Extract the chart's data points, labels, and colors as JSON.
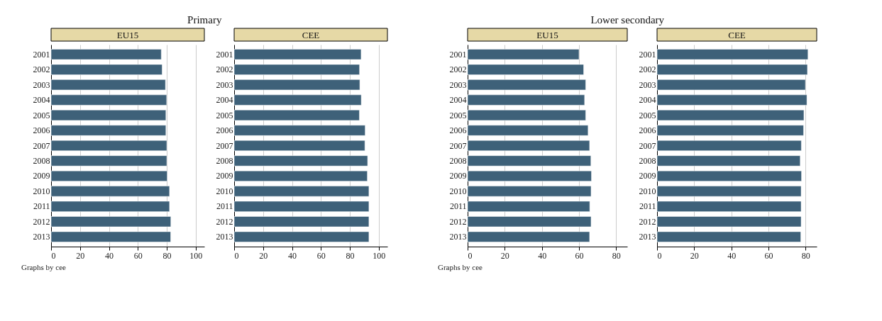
{
  "chart_data": [
    {
      "type": "bar",
      "orientation": "horizontal",
      "title": "Primary",
      "subtitle": "EU15",
      "annotations": [
        "Graphs by cee"
      ],
      "categories": [
        "2001",
        "2002",
        "2003",
        "2004",
        "2005",
        "2006",
        "2007",
        "2008",
        "2009",
        "2010",
        "2011",
        "2012",
        "2013"
      ],
      "series": [
        {
          "color": "#3e6179",
          "values": [
            76.2,
            76.8,
            79.1,
            79.9,
            79.4,
            79.4,
            80.0,
            80.0,
            80.3,
            81.9,
            81.9,
            82.8,
            82.7
          ]
        }
      ],
      "xlim": [
        0,
        106
      ],
      "xticks": [
        0,
        20,
        40,
        60,
        80,
        100
      ],
      "grid": "x",
      "legend": false
    },
    {
      "type": "bar",
      "orientation": "horizontal",
      "subtitle": "CEE",
      "categories": [
        "2001",
        "2002",
        "2003",
        "2004",
        "2005",
        "2006",
        "2007",
        "2008",
        "2009",
        "2010",
        "2011",
        "2012",
        "2013"
      ],
      "series": [
        {
          "color": "#3e6179",
          "values": [
            87.8,
            86.7,
            86.9,
            87.9,
            86.6,
            90.6,
            90.4,
            92.3,
            92.1,
            93.2,
            93.2,
            93.2,
            93.2
          ]
        }
      ],
      "xlim": [
        0,
        106
      ],
      "xticks": [
        0,
        20,
        40,
        60,
        80,
        100
      ],
      "grid": "x",
      "legend": false
    },
    {
      "type": "bar",
      "orientation": "horizontal",
      "title": "Lower secondary",
      "subtitle": "EU15",
      "annotations": [
        "Graphs by cee"
      ],
      "categories": [
        "2001",
        "2002",
        "2003",
        "2004",
        "2005",
        "2006",
        "2007",
        "2008",
        "2009",
        "2010",
        "2011",
        "2012",
        "2013"
      ],
      "series": [
        {
          "color": "#3e6179",
          "values": [
            60.0,
            62.5,
            63.6,
            63.0,
            63.6,
            64.9,
            65.7,
            66.4,
            66.7,
            66.5,
            65.8,
            66.5,
            65.7
          ]
        }
      ],
      "xlim": [
        0,
        86
      ],
      "xticks": [
        0,
        20,
        40,
        60,
        80
      ],
      "grid": "x",
      "legend": false
    },
    {
      "type": "bar",
      "orientation": "horizontal",
      "subtitle": "CEE",
      "categories": [
        "2001",
        "2002",
        "2003",
        "2004",
        "2005",
        "2006",
        "2007",
        "2008",
        "2009",
        "2010",
        "2011",
        "2012",
        "2013"
      ],
      "series": [
        {
          "color": "#3e6179",
          "values": [
            81.3,
            81.0,
            79.9,
            80.7,
            79.1,
            78.9,
            77.7,
            77.1,
            77.8,
            77.6,
            77.6,
            77.6,
            77.4
          ]
        }
      ],
      "xlim": [
        0,
        86
      ],
      "xticks": [
        0,
        20,
        40,
        60,
        80
      ],
      "grid": "x",
      "legend": false
    }
  ]
}
